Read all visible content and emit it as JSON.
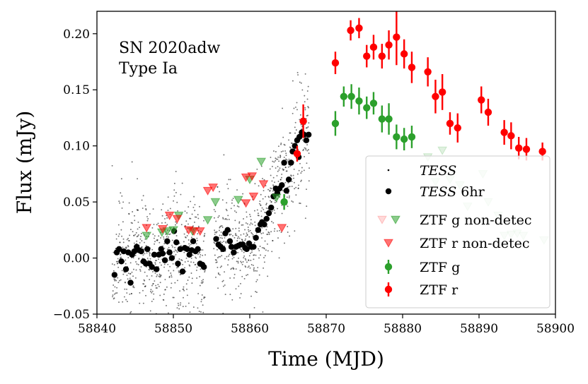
{
  "chart_data": {
    "type": "scatter",
    "annotation": [
      "SN 2020adw",
      "Type Ia"
    ],
    "xlabel": "Time (MJD)",
    "ylabel": "Flux (mJy)",
    "xlim": [
      58840,
      58900
    ],
    "ylim": [
      -0.05,
      0.22
    ],
    "xticks": [
      58840,
      58850,
      58860,
      58870,
      58880,
      58890,
      58900
    ],
    "yticks": [
      -0.05,
      0.0,
      0.05,
      0.1,
      0.15,
      0.2
    ],
    "xtick_labels": [
      "58840",
      "58850",
      "58860",
      "58870",
      "58880",
      "58890",
      "58900"
    ],
    "ytick_labels": [
      "−0.05",
      "0.00",
      "0.05",
      "0.10",
      "0.15",
      "0.20"
    ],
    "legend": {
      "placement": "lower-right",
      "entries": [
        {
          "key": "tess",
          "label_italic": "TESS",
          "label_rest": ""
        },
        {
          "key": "tess6",
          "label_italic": "TESS",
          "label_rest": " 6hr"
        },
        {
          "key": "ztfg_nd",
          "label_italic": "",
          "label_rest": "ZTF g non-detec"
        },
        {
          "key": "ztfr_nd",
          "label_italic": "",
          "label_rest": "ZTF r non-detec"
        },
        {
          "key": "ztfg",
          "label_italic": "",
          "label_rest": "ZTF g"
        },
        {
          "key": "ztfr",
          "label_italic": "",
          "label_rest": "ZTF r"
        }
      ]
    },
    "colors": {
      "tess": "#000000",
      "tess6": "#000000",
      "ztf_g": "#2ca02c",
      "ztf_r": "#ff0000"
    },
    "series": [
      {
        "name": "TESS",
        "style": "small-dots",
        "generated": {
          "segments": [
            [
              58842.0,
              58854.2
            ],
            [
              58855.3,
              58867.8
            ]
          ],
          "cadence_days": 0.0208,
          "scatter_sigma": 0.025,
          "seed": 7
        }
      },
      {
        "name": "TESS 6hr",
        "style": "dots",
        "points": [
          [
            58842.3,
            -0.015
          ],
          [
            58842.6,
            0.005
          ],
          [
            58842.9,
            0.008
          ],
          [
            58843.2,
            -0.003
          ],
          [
            58843.5,
            0.006
          ],
          [
            58843.8,
            -0.01
          ],
          [
            58844.1,
            0.005
          ],
          [
            58844.4,
            -0.022
          ],
          [
            58844.6,
            0.003
          ],
          [
            58844.9,
            0.006
          ],
          [
            58845.2,
            0.01
          ],
          [
            58845.5,
            0.007
          ],
          [
            58845.8,
            0.006
          ],
          [
            58846.1,
            -0.003
          ],
          [
            58846.4,
            -0.005
          ],
          [
            58846.6,
            0.008
          ],
          [
            58846.9,
            -0.005
          ],
          [
            58847.2,
            -0.008
          ],
          [
            58847.5,
            0.003
          ],
          [
            58847.8,
            -0.01
          ],
          [
            58848.1,
            0.003
          ],
          [
            58848.4,
            0.008
          ],
          [
            58848.6,
            0.004
          ],
          [
            58848.9,
            -0.002
          ],
          [
            58849.2,
            0.015
          ],
          [
            58849.5,
            0.005
          ],
          [
            58849.8,
            0.0
          ],
          [
            58850.1,
            0.024
          ],
          [
            58850.4,
            0.014
          ],
          [
            58850.6,
            -0.005
          ],
          [
            58850.9,
            0.008
          ],
          [
            58851.2,
            -0.012
          ],
          [
            58851.5,
            0.009
          ],
          [
            58851.8,
            0.008
          ],
          [
            58852.1,
            0.003
          ],
          [
            58852.4,
            0.007
          ],
          [
            58852.6,
            0.015
          ],
          [
            58852.9,
            0.006
          ],
          [
            58853.2,
            0.008
          ],
          [
            58853.5,
            -0.005
          ],
          [
            58853.8,
            -0.006
          ],
          [
            58854.0,
            -0.008
          ],
          [
            58855.6,
            0.017
          ],
          [
            58855.9,
            0.012
          ],
          [
            58856.2,
            0.01
          ],
          [
            58856.5,
            0.008
          ],
          [
            58856.8,
            0.022
          ],
          [
            58857.1,
            0.025
          ],
          [
            58857.4,
            0.015
          ],
          [
            58857.6,
            0.01
          ],
          [
            58857.9,
            0.005
          ],
          [
            58858.2,
            0.01
          ],
          [
            58858.5,
            0.011
          ],
          [
            58858.8,
            0.012
          ],
          [
            58859.1,
            0.012
          ],
          [
            58859.4,
            0.009
          ],
          [
            58859.6,
            0.008
          ],
          [
            58859.9,
            0.013
          ],
          [
            58860.2,
            0.01
          ],
          [
            58860.5,
            0.01
          ],
          [
            58860.8,
            0.018
          ],
          [
            58861.1,
            0.025
          ],
          [
            58861.4,
            0.03
          ],
          [
            58861.6,
            0.032
          ],
          [
            58861.9,
            0.03
          ],
          [
            58862.2,
            0.035
          ],
          [
            58862.5,
            0.04
          ],
          [
            58862.8,
            0.045
          ],
          [
            58863.1,
            0.055
          ],
          [
            58863.4,
            0.062
          ],
          [
            58863.6,
            0.058
          ],
          [
            58863.9,
            0.062
          ],
          [
            58864.2,
            0.065
          ],
          [
            58864.5,
            0.085
          ],
          [
            58864.8,
            0.06
          ],
          [
            58865.1,
            0.07
          ],
          [
            58865.4,
            0.085
          ],
          [
            58865.6,
            0.095
          ],
          [
            58865.9,
            0.1
          ],
          [
            58866.2,
            0.105
          ],
          [
            58866.5,
            0.108
          ],
          [
            58866.8,
            0.112
          ],
          [
            58867.1,
            0.11
          ],
          [
            58867.4,
            0.105
          ],
          [
            58867.7,
            0.11
          ],
          [
            58866.4,
            0.09
          ]
        ]
      },
      {
        "name": "ZTF g non-detec",
        "style": "triangle-down",
        "color": "#2ca02c",
        "faded_after": 58870,
        "points": [
          [
            58846.5,
            0.02
          ],
          [
            58848.5,
            0.023
          ],
          [
            58849.2,
            0.024
          ],
          [
            58850.0,
            0.025
          ],
          [
            58850.7,
            0.038
          ],
          [
            58852.5,
            0.024
          ],
          [
            58854.5,
            0.034
          ],
          [
            58855.5,
            0.05
          ],
          [
            58858.5,
            0.052
          ],
          [
            58860.0,
            0.07
          ],
          [
            58861.5,
            0.086
          ],
          [
            58863.5,
            0.054
          ],
          [
            58883.3,
            0.09
          ],
          [
            58884.3,
            0.068
          ],
          [
            58885.2,
            0.096
          ],
          [
            58886.2,
            0.07
          ],
          [
            58887.5,
            0.065
          ],
          [
            58888.5,
            0.046
          ],
          [
            58890.5,
            0.075
          ],
          [
            58891.2,
            0.05
          ],
          [
            58892.5,
            0.038
          ],
          [
            58893.3,
            0.02
          ],
          [
            58894.2,
            0.021
          ],
          [
            58895.0,
            0.022
          ],
          [
            58895.8,
            0.02
          ],
          [
            58898.5,
            0.016
          ]
        ]
      },
      {
        "name": "ZTF r non-detec",
        "style": "triangle-down",
        "color": "#ff0000",
        "faded_after": 58870,
        "points": [
          [
            58846.5,
            0.027
          ],
          [
            58848.6,
            0.026
          ],
          [
            58849.5,
            0.038
          ],
          [
            58850.5,
            0.035
          ],
          [
            58852.0,
            0.025
          ],
          [
            58852.7,
            0.024
          ],
          [
            58853.5,
            0.024
          ],
          [
            58854.5,
            0.06
          ],
          [
            58855.2,
            0.063
          ],
          [
            58859.5,
            0.072
          ],
          [
            58860.3,
            0.073
          ],
          [
            58859.5,
            0.049
          ],
          [
            58860.5,
            0.055
          ],
          [
            58861.8,
            0.066
          ],
          [
            58864.2,
            0.027
          ]
        ]
      },
      {
        "name": "ZTF g",
        "style": "errorbar",
        "color": "#2ca02c",
        "points": [
          [
            58864.5,
            0.05,
            0.007
          ],
          [
            58871.2,
            0.12,
            0.011
          ],
          [
            58872.3,
            0.144,
            0.009
          ],
          [
            58873.3,
            0.144,
            0.011
          ],
          [
            58874.3,
            0.14,
            0.012
          ],
          [
            58875.3,
            0.134,
            0.01
          ],
          [
            58876.2,
            0.138,
            0.01
          ],
          [
            58877.3,
            0.124,
            0.012
          ],
          [
            58878.2,
            0.124,
            0.014
          ],
          [
            58879.2,
            0.108,
            0.011
          ],
          [
            58880.2,
            0.106,
            0.01
          ],
          [
            58881.2,
            0.108,
            0.01
          ]
        ]
      },
      {
        "name": "ZTF r",
        "style": "errorbar",
        "color": "#ff0000",
        "points": [
          [
            58866.2,
            0.093,
            0.007
          ],
          [
            58867.0,
            0.122,
            0.015
          ],
          [
            58871.2,
            0.174,
            0.01
          ],
          [
            58873.2,
            0.203,
            0.009
          ],
          [
            58874.3,
            0.205,
            0.009
          ],
          [
            58875.3,
            0.18,
            0.01
          ],
          [
            58876.2,
            0.188,
            0.011
          ],
          [
            58877.3,
            0.18,
            0.011
          ],
          [
            58878.2,
            0.19,
            0.013
          ],
          [
            58879.2,
            0.197,
            0.025
          ],
          [
            58880.2,
            0.182,
            0.013
          ],
          [
            58881.2,
            0.17,
            0.014
          ],
          [
            58883.3,
            0.166,
            0.013
          ],
          [
            58884.3,
            0.144,
            0.015
          ],
          [
            58885.2,
            0.148,
            0.016
          ],
          [
            58886.2,
            0.12,
            0.01
          ],
          [
            58887.2,
            0.116,
            0.013
          ],
          [
            58890.3,
            0.141,
            0.012
          ],
          [
            58891.2,
            0.13,
            0.012
          ],
          [
            58893.3,
            0.112,
            0.011
          ],
          [
            58894.2,
            0.109,
            0.012
          ],
          [
            58895.2,
            0.098,
            0.01
          ],
          [
            58896.2,
            0.097,
            0.01
          ],
          [
            58898.3,
            0.095,
            0.008
          ]
        ]
      }
    ]
  }
}
